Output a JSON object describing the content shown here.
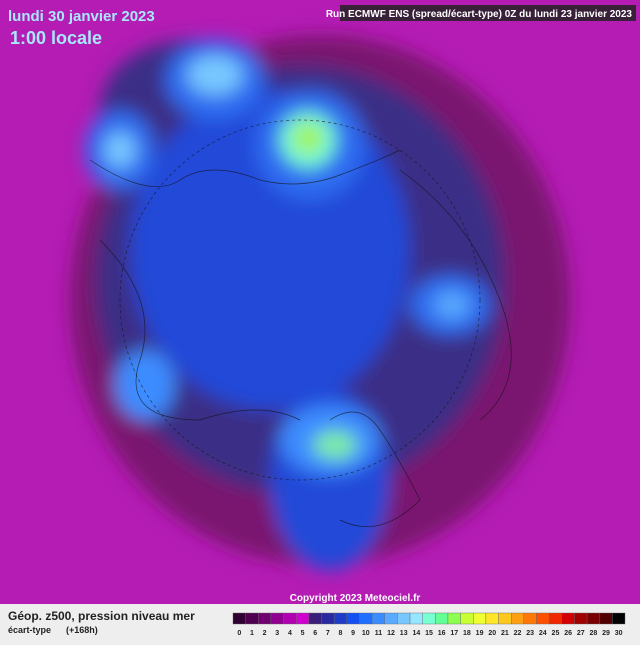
{
  "header": {
    "date": "lundi 30 janvier 2023",
    "time": "1:00 locale",
    "run": "Run ECMWF ENS (spread/écart-type) 0Z du lundi 23 janvier 2023"
  },
  "footer": {
    "copyright": "Copyright 2023 Meteociel.fr",
    "product": "Géop. z500, pression niveau mer",
    "field": "écart-type",
    "lead": "(+168h)"
  },
  "scale": {
    "labels": [
      "0",
      "1",
      "2",
      "3",
      "4",
      "5",
      "6",
      "7",
      "8",
      "9",
      "10",
      "11",
      "12",
      "13",
      "14",
      "15",
      "16",
      "17",
      "18",
      "19",
      "20",
      "21",
      "22",
      "23",
      "24",
      "25",
      "26",
      "27",
      "28",
      "29",
      "30"
    ],
    "colors": [
      "#300030",
      "#500050",
      "#700070",
      "#900090",
      "#b000b0",
      "#d000d0",
      "#3a1f7a",
      "#2a2aa0",
      "#1e3cc8",
      "#1450f0",
      "#1e6eff",
      "#3c8cff",
      "#5aaaff",
      "#78c8ff",
      "#96e6ff",
      "#78ffd2",
      "#64ff96",
      "#8cff50",
      "#c8ff32",
      "#f0ff32",
      "#ffe628",
      "#ffc81e",
      "#ffa014",
      "#ff780a",
      "#ff5000",
      "#f02800",
      "#d20000",
      "#a00000",
      "#780000",
      "#500000",
      "#000000"
    ]
  }
}
